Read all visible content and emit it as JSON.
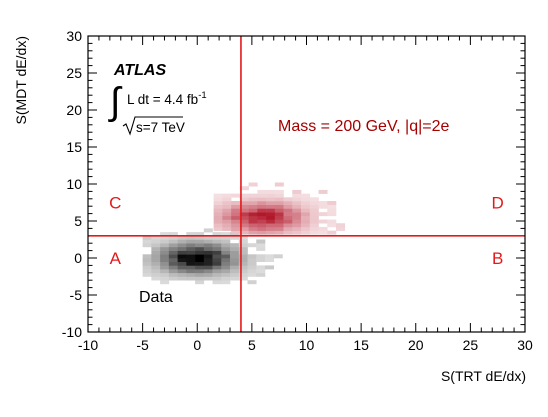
{
  "chart_data": {
    "type": "heatmap",
    "xlabel": "S(TRT dE/dx)",
    "ylabel": "S(MDT dE/dx)",
    "xlim": [
      -10,
      30
    ],
    "ylim": [
      -10,
      30
    ],
    "x_ticks": [
      -10,
      -5,
      0,
      5,
      10,
      15,
      20,
      25,
      30
    ],
    "y_ticks": [
      -10,
      -5,
      0,
      5,
      10,
      15,
      20,
      25,
      30
    ],
    "grid": false,
    "cuts": {
      "x": 4,
      "y": 3,
      "color": "#e31a1c"
    },
    "region_labels": [
      {
        "text": "A",
        "x": -7.5,
        "y": 0
      },
      {
        "text": "B",
        "x": 27.5,
        "y": 0
      },
      {
        "text": "C",
        "x": -7.5,
        "y": 7.5
      },
      {
        "text": "D",
        "x": 27.5,
        "y": 7.5
      }
    ],
    "annotations": {
      "experiment": "ATLAS",
      "lumi_prefix": "L dt = 4.4 fb",
      "lumi_exponent": "-1",
      "sqrt_s": "s=7 TeV",
      "signal_label": "Mass = 200 GeV, |q|=2e",
      "data_label": "Data"
    },
    "series": [
      {
        "role": "data",
        "color": "#000000",
        "center": [
          0,
          0
        ],
        "spread": [
          3.2,
          1.8
        ],
        "x_range": [
          -5,
          14
        ],
        "y_range": [
          -3.5,
          4
        ]
      },
      {
        "role": "signal",
        "color": "#b2182b",
        "center": [
          6,
          5.5
        ],
        "spread": [
          3.3,
          1.8
        ],
        "x_range": [
          1.5,
          16
        ],
        "y_range": [
          3.2,
          10
        ]
      }
    ]
  }
}
